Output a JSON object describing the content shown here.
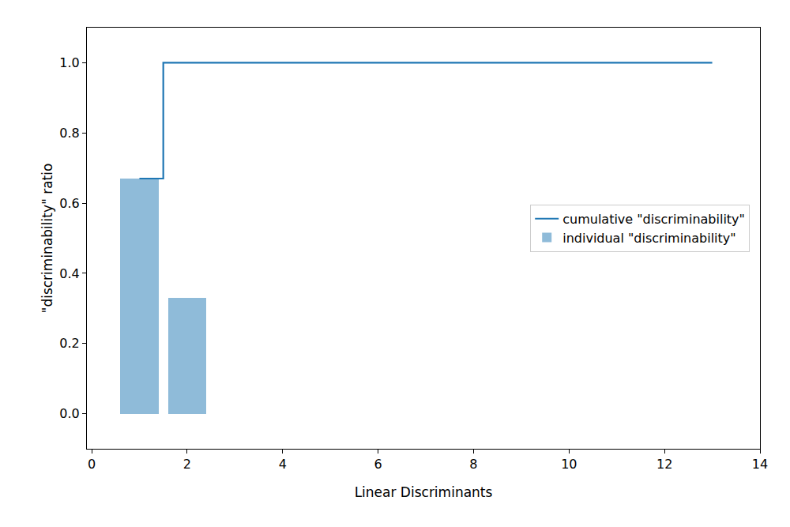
{
  "chart_data": {
    "type": "bar",
    "x": [
      1,
      2,
      3,
      4,
      5,
      6,
      7,
      8,
      9,
      10,
      11,
      12,
      13
    ],
    "series": [
      {
        "name": "cumulative \"discriminability\"",
        "type": "line",
        "line_style": "step",
        "color": "#1f77b4",
        "values": [
          0.67,
          1.0,
          1.0,
          1.0,
          1.0,
          1.0,
          1.0,
          1.0,
          1.0,
          1.0,
          1.0,
          1.0,
          1.0
        ]
      },
      {
        "name": "individual \"discriminability\"",
        "type": "bar",
        "color": "#8fbbd9",
        "values": [
          0.67,
          0.33,
          0,
          0,
          0,
          0,
          0,
          0,
          0,
          0,
          0,
          0,
          0
        ]
      }
    ],
    "x_label": "Linear Discriminants",
    "y_label": "\"discriminability\" ratio",
    "xlim": [
      -0.1,
      14
    ],
    "xticks": [
      0,
      2,
      4,
      6,
      8,
      10,
      12,
      14
    ],
    "ylim": [
      -0.1,
      1.1
    ],
    "yticks": [
      {
        "value": 0,
        "label": "0.0"
      },
      {
        "value": 0.2,
        "label": "0.2"
      },
      {
        "value": 0.4,
        "label": "0.4"
      },
      {
        "value": 0.6,
        "label": "0.6"
      },
      {
        "value": 0.8,
        "label": "0.8"
      },
      {
        "value": 1,
        "label": "1.0"
      }
    ],
    "grid": false,
    "legend": "center right"
  }
}
